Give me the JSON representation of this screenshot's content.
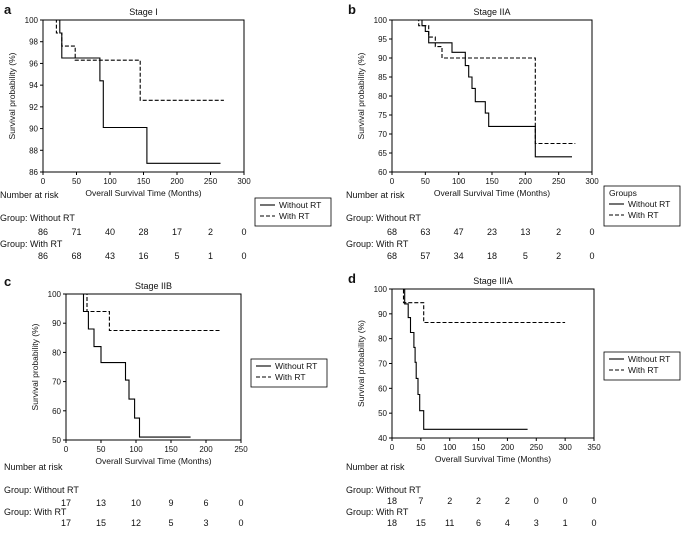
{
  "chart_data": [
    {
      "type": "line",
      "panel_letter": "a",
      "title": "Stage I",
      "xlabel": "Overall Survival Time (Months)",
      "ylabel": "Survival probability (%)",
      "xlim": [
        0,
        300
      ],
      "ylim": [
        86,
        100
      ],
      "xticks": [
        0,
        50,
        100,
        150,
        200,
        250,
        300
      ],
      "yticks": [
        86,
        88,
        90,
        92,
        94,
        96,
        98,
        100
      ],
      "legend": {
        "position": "right",
        "title": "",
        "entries": [
          "Without RT",
          "With RT"
        ]
      },
      "series": [
        {
          "name": "Without RT",
          "style": "solid",
          "steps": [
            [
              0,
              100
            ],
            [
              25,
              100
            ],
            [
              25,
              98.8
            ],
            [
              28,
              98.8
            ],
            [
              28,
              96.5
            ],
            [
              85,
              96.5
            ],
            [
              85,
              94.4
            ],
            [
              90,
              94.4
            ],
            [
              90,
              90.1
            ],
            [
              155,
              90.1
            ],
            [
              155,
              86.8
            ],
            [
              265,
              86.8
            ]
          ]
        },
        {
          "name": "With RT",
          "style": "dashed",
          "steps": [
            [
              0,
              100
            ],
            [
              20,
              100
            ],
            [
              20,
              98.8
            ],
            [
              28,
              98.8
            ],
            [
              28,
              97.6
            ],
            [
              48,
              97.6
            ],
            [
              48,
              96.3
            ],
            [
              145,
              96.3
            ],
            [
              145,
              92.6
            ],
            [
              270,
              92.6
            ]
          ]
        }
      ],
      "risk_table": {
        "title": "Number at risk",
        "times": [
          0,
          50,
          100,
          150,
          200,
          250,
          300
        ],
        "groups": [
          {
            "label": "Group: Without RT",
            "values": [
              "86",
              "71",
              "40",
              "28",
              "17",
              "2",
              "0"
            ]
          },
          {
            "label": "Group: With RT",
            "values": [
              "86",
              "68",
              "43",
              "16",
              "5",
              "1",
              "0"
            ]
          }
        ]
      }
    },
    {
      "type": "line",
      "panel_letter": "b",
      "title": "Stage IIA",
      "xlabel": "Overall Survival Time (Months)",
      "ylabel": "Survival probability (%)",
      "xlim": [
        0,
        300
      ],
      "ylim": [
        60,
        100
      ],
      "xticks": [
        0,
        50,
        100,
        150,
        200,
        250,
        300
      ],
      "yticks": [
        60,
        65,
        70,
        75,
        80,
        85,
        90,
        95,
        100
      ],
      "legend": {
        "position": "right",
        "title": "Groups",
        "entries": [
          "Without RT",
          "With RT"
        ]
      },
      "series": [
        {
          "name": "Without RT",
          "style": "solid",
          "steps": [
            [
              0,
              100
            ],
            [
              45,
              100
            ],
            [
              45,
              98.5
            ],
            [
              50,
              98.5
            ],
            [
              50,
              97
            ],
            [
              55,
              97
            ],
            [
              55,
              94
            ],
            [
              90,
              94
            ],
            [
              90,
              91.5
            ],
            [
              110,
              91.5
            ],
            [
              110,
              88
            ],
            [
              115,
              88
            ],
            [
              115,
              85
            ],
            [
              120,
              85
            ],
            [
              120,
              82
            ],
            [
              125,
              82
            ],
            [
              125,
              78.5
            ],
            [
              140,
              78.5
            ],
            [
              140,
              75.5
            ],
            [
              145,
              75.5
            ],
            [
              145,
              72
            ],
            [
              215,
              72
            ],
            [
              215,
              64
            ],
            [
              270,
              64
            ]
          ]
        },
        {
          "name": "With RT",
          "style": "dashed",
          "steps": [
            [
              0,
              100
            ],
            [
              40,
              100
            ],
            [
              40,
              98.5
            ],
            [
              55,
              98.5
            ],
            [
              55,
              95.5
            ],
            [
              65,
              95.5
            ],
            [
              65,
              93
            ],
            [
              75,
              93
            ],
            [
              75,
              90
            ],
            [
              215,
              90
            ],
            [
              215,
              67.5
            ],
            [
              275,
              67.5
            ]
          ]
        }
      ],
      "risk_table": {
        "title": "Number at risk",
        "times": [
          0,
          50,
          100,
          150,
          200,
          250,
          300
        ],
        "groups": [
          {
            "label": "Group: Without RT",
            "values": [
              "68",
              "63",
              "47",
              "23",
              "13",
              "2",
              "0"
            ]
          },
          {
            "label": "Group: With RT",
            "values": [
              "68",
              "57",
              "34",
              "18",
              "5",
              "2",
              "0"
            ]
          }
        ]
      }
    },
    {
      "type": "line",
      "panel_letter": "c",
      "title": "Stage IIB",
      "xlabel": "Overall Survival Time (Months)",
      "ylabel": "Survival probability (%)",
      "xlim": [
        0,
        250
      ],
      "ylim": [
        50,
        100
      ],
      "xticks": [
        0,
        50,
        100,
        150,
        200,
        250
      ],
      "yticks": [
        50,
        60,
        70,
        80,
        90,
        100
      ],
      "legend": {
        "position": "right",
        "title": "",
        "entries": [
          "Without RT",
          "With RT"
        ]
      },
      "series": [
        {
          "name": "Without RT",
          "style": "solid",
          "steps": [
            [
              0,
              100
            ],
            [
              25,
              100
            ],
            [
              25,
              94
            ],
            [
              32,
              94
            ],
            [
              32,
              88
            ],
            [
              40,
              88
            ],
            [
              40,
              82
            ],
            [
              50,
              82
            ],
            [
              50,
              76.5
            ],
            [
              85,
              76.5
            ],
            [
              85,
              70.5
            ],
            [
              90,
              70.5
            ],
            [
              90,
              64
            ],
            [
              98,
              64
            ],
            [
              98,
              57.5
            ],
            [
              105,
              57.5
            ],
            [
              105,
              51
            ],
            [
              178,
              51
            ]
          ]
        },
        {
          "name": "With RT",
          "style": "dashed",
          "steps": [
            [
              0,
              100
            ],
            [
              30,
              100
            ],
            [
              30,
              94
            ],
            [
              62,
              94
            ],
            [
              62,
              87.5
            ],
            [
              220,
              87.5
            ]
          ]
        }
      ],
      "risk_table": {
        "title": "Number at risk",
        "times": [
          0,
          50,
          100,
          150,
          200,
          250
        ],
        "groups": [
          {
            "label": "Group: Without RT",
            "values": [
              "17",
              "13",
              "10",
              "9",
              "6",
              "0"
            ]
          },
          {
            "label": "Group: With RT",
            "values": [
              "17",
              "15",
              "12",
              "5",
              "3",
              "0"
            ]
          }
        ]
      }
    },
    {
      "type": "line",
      "panel_letter": "d",
      "title": "Stage IIIA",
      "xlabel": "Overall Survival Time (Months)",
      "ylabel": "Survival probability (%)",
      "xlim": [
        0,
        350
      ],
      "ylim": [
        40,
        100
      ],
      "xticks": [
        0,
        50,
        100,
        150,
        200,
        250,
        300,
        350
      ],
      "yticks": [
        40,
        50,
        60,
        70,
        80,
        90,
        100
      ],
      "legend": {
        "position": "right",
        "title": "",
        "entries": [
          "Without RT",
          "With RT"
        ]
      },
      "series": [
        {
          "name": "Without RT",
          "style": "solid",
          "steps": [
            [
              0,
              100
            ],
            [
              22,
              100
            ],
            [
              22,
              94
            ],
            [
              28,
              94
            ],
            [
              28,
              88.5
            ],
            [
              32,
              88.5
            ],
            [
              32,
              82.5
            ],
            [
              38,
              82.5
            ],
            [
              38,
              76.5
            ],
            [
              40,
              76.5
            ],
            [
              40,
              70.5
            ],
            [
              42,
              70.5
            ],
            [
              42,
              64
            ],
            [
              45,
              64
            ],
            [
              45,
              57.5
            ],
            [
              48,
              57.5
            ],
            [
              48,
              51
            ],
            [
              55,
              51
            ],
            [
              55,
              43.5
            ],
            [
              235,
              43.5
            ]
          ]
        },
        {
          "name": "With RT",
          "style": "dashed",
          "steps": [
            [
              0,
              100
            ],
            [
              20,
              100
            ],
            [
              20,
              94.5
            ],
            [
              55,
              94.5
            ],
            [
              55,
              86.5
            ],
            [
              300,
              86.5
            ]
          ]
        }
      ],
      "risk_table": {
        "title": "Number at risk",
        "times": [
          0,
          50,
          100,
          150,
          200,
          250,
          300,
          350
        ],
        "groups": [
          {
            "label": "Group: Without RT",
            "values": [
              "18",
              "7",
              "2",
              "2",
              "2",
              "0",
              "0",
              "0"
            ]
          },
          {
            "label": "Group: With RT",
            "values": [
              "18",
              "15",
              "11",
              "6",
              "4",
              "3",
              "1",
              "0"
            ]
          }
        ]
      }
    }
  ]
}
